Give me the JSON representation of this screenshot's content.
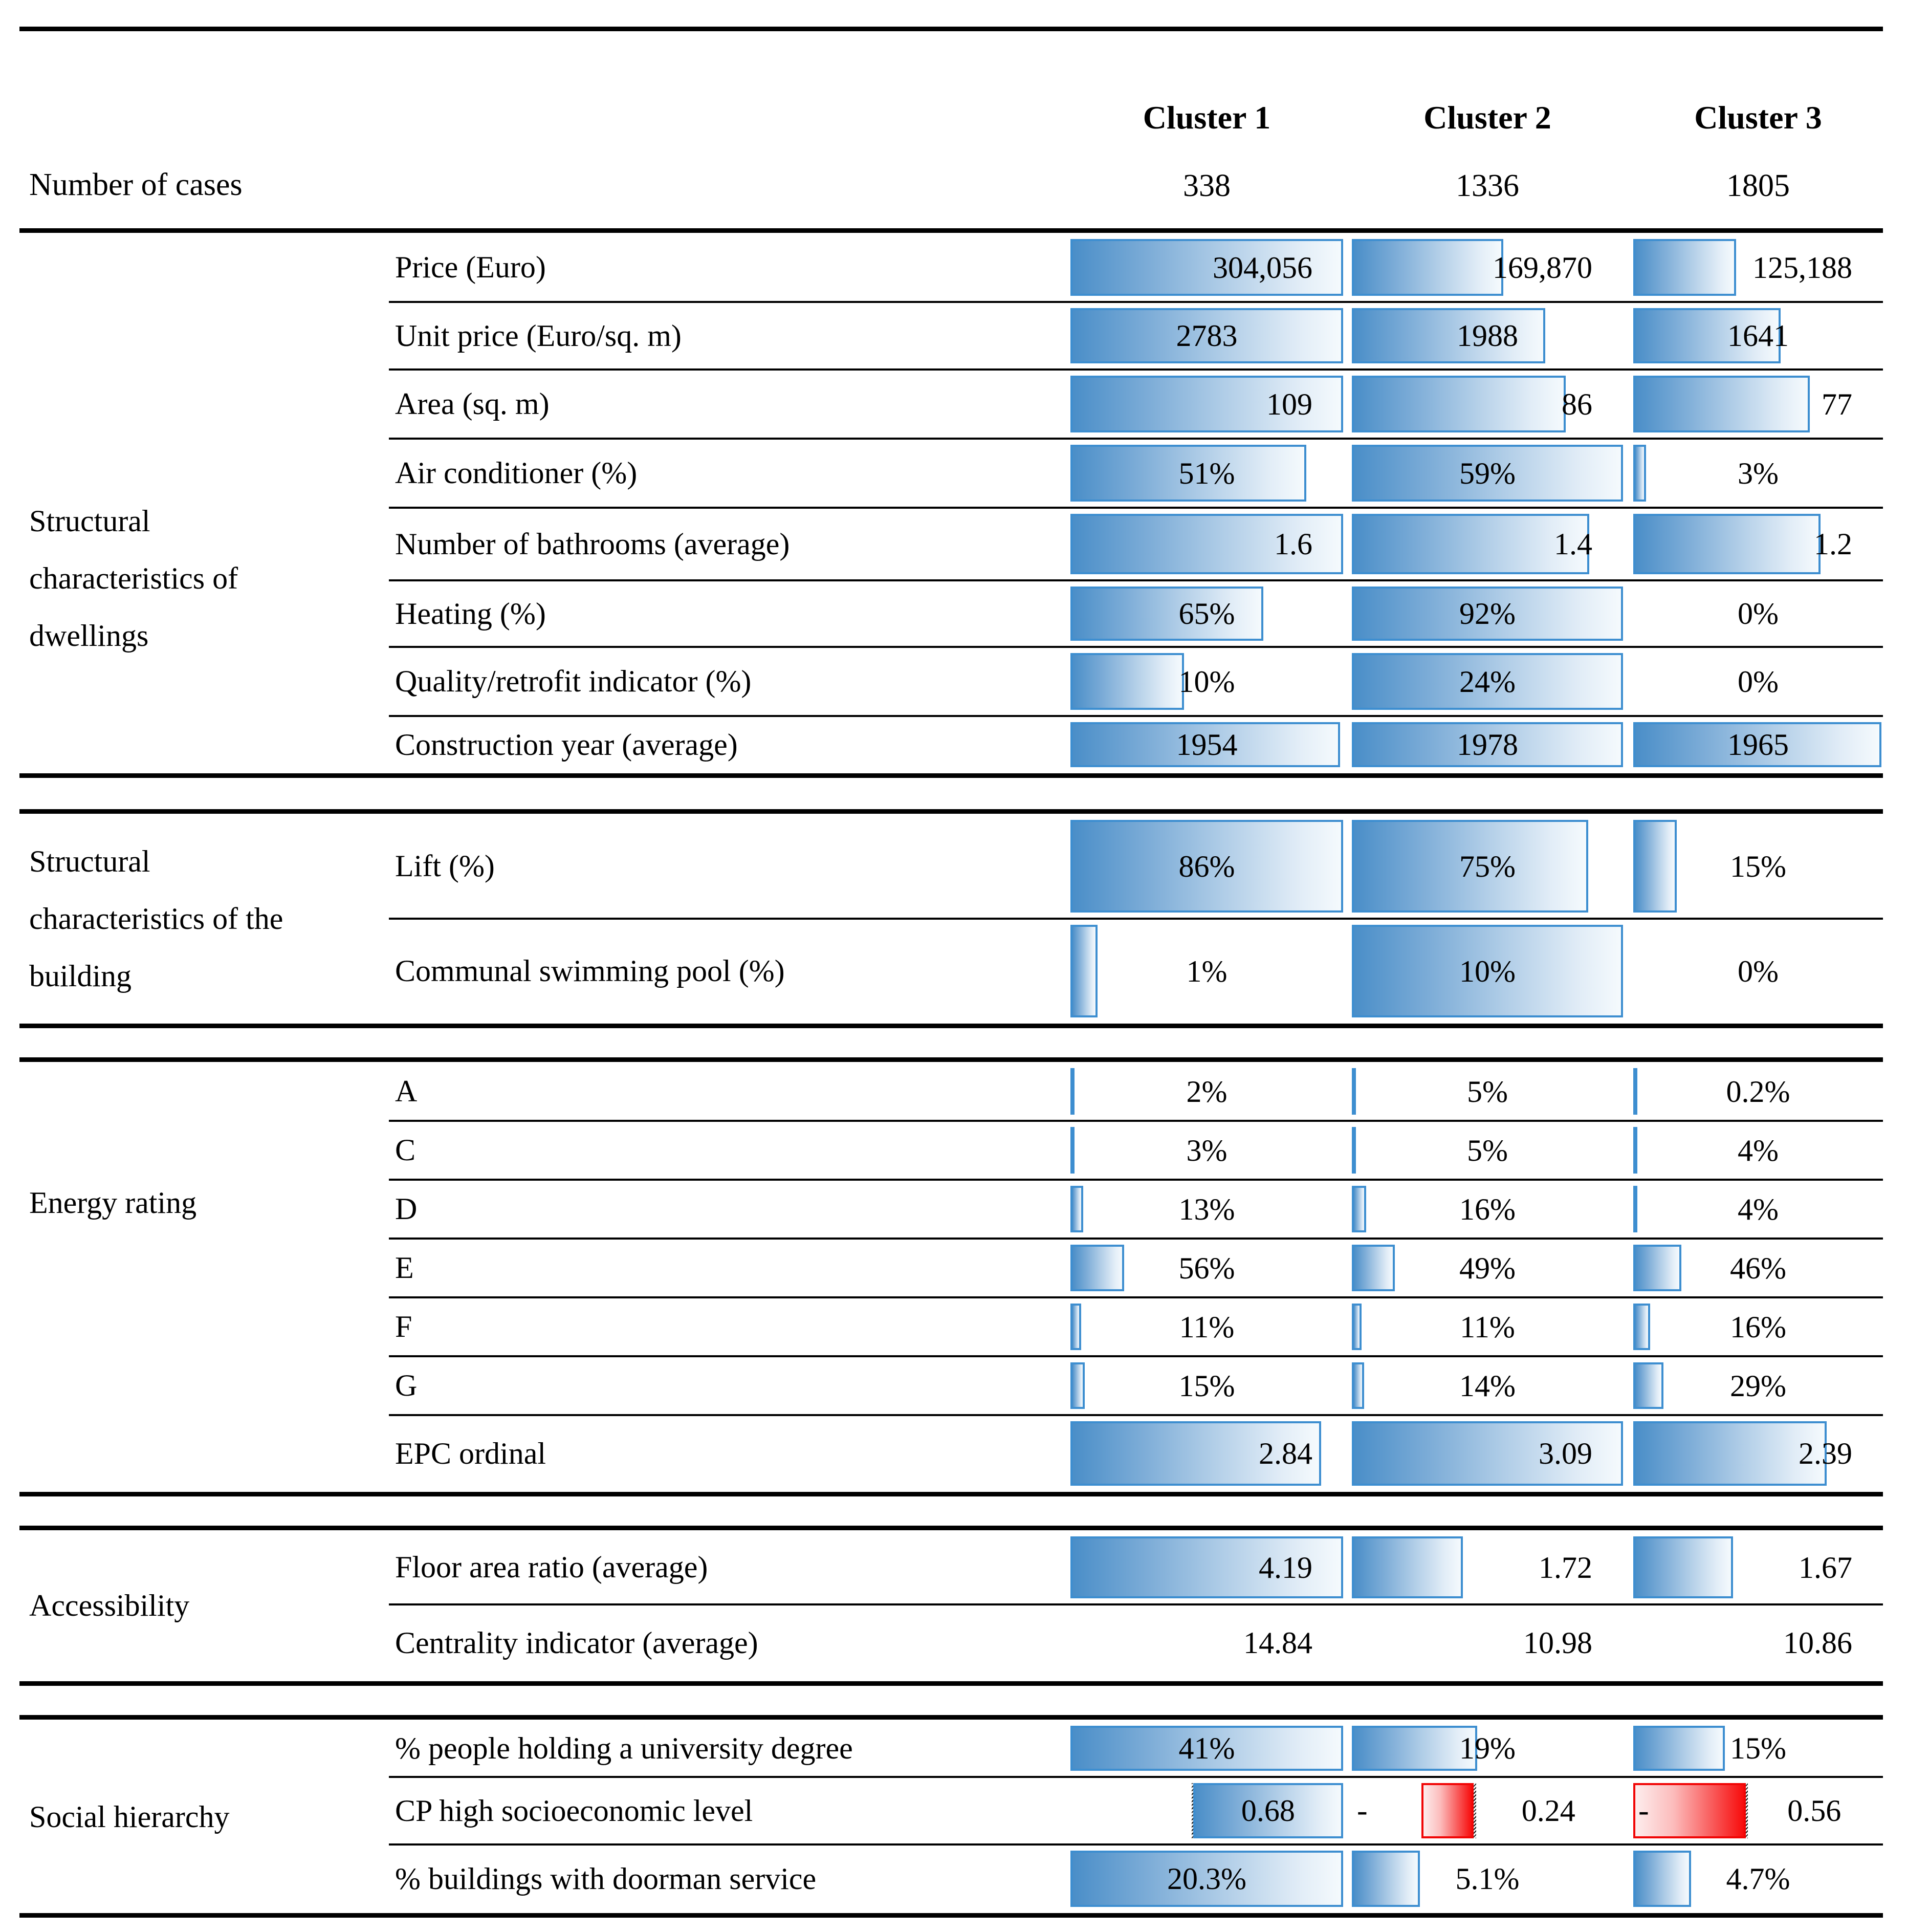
{
  "header": {
    "number_of_cases_label": "Number of cases",
    "clusters": [
      {
        "name": "Cluster 1",
        "count": "338"
      },
      {
        "name": "Cluster 2",
        "count": "1336"
      },
      {
        "name": "Cluster 3",
        "count": "1805"
      }
    ]
  },
  "colors": {
    "bar_blue_border": "#3d8ed0",
    "bar_blue_solid": "#4a8ec8",
    "bar_red_border": "#f10505",
    "bar_red_solid": "#f80c0c"
  },
  "sections": [
    {
      "label_lines": [
        "Structural",
        "characteristics of",
        "dwellings"
      ],
      "rows": [
        {
          "label": "Price (Euro)",
          "align": "right",
          "cells": [
            {
              "value": "304,056",
              "bar": 1
            },
            {
              "value": "169,870",
              "bar": 0.559
            },
            {
              "value": "125,188",
              "bar": 0.412
            }
          ]
        },
        {
          "label": "Unit price (Euro/sq. m)",
          "align": "center",
          "cells": [
            {
              "value": "2783",
              "bar": 1
            },
            {
              "value": "1988",
              "bar": 0.714
            },
            {
              "value": "1641",
              "bar": 0.59
            }
          ]
        },
        {
          "label": "Area (sq. m)",
          "align": "right",
          "cells": [
            {
              "value": "109",
              "bar": 1
            },
            {
              "value": "86",
              "bar": 0.789
            },
            {
              "value": "77",
              "bar": 0.706
            }
          ]
        },
        {
          "label": "Air conditioner (%)",
          "align": "center",
          "cells": [
            {
              "value": "51%",
              "bar": 0.864
            },
            {
              "value": "59%",
              "bar": 1
            },
            {
              "value": "3%",
              "bar": 0.051
            }
          ]
        },
        {
          "label": "Number of bathrooms (average)",
          "align": "right",
          "cells": [
            {
              "value": "1.6",
              "bar": 1
            },
            {
              "value": "1.4",
              "bar": 0.875
            },
            {
              "value": "1.2",
              "bar": 0.75
            }
          ]
        },
        {
          "label": "Heating (%)",
          "align": "center",
          "cells": [
            {
              "value": "65%",
              "bar": 0.707
            },
            {
              "value": "92%",
              "bar": 1
            },
            {
              "value": "0%",
              "bar": 0
            }
          ]
        },
        {
          "label": "Quality/retrofit indicator (%)",
          "align": "center",
          "cells": [
            {
              "value": "10%",
              "bar": 0.417
            },
            {
              "value": "24%",
              "bar": 1
            },
            {
              "value": "0%",
              "bar": 0
            }
          ]
        },
        {
          "label": "Construction year (average)",
          "align": "center",
          "cells": [
            {
              "value": "1954",
              "bar": 0.988
            },
            {
              "value": "1978",
              "bar": 1
            },
            {
              "value": "1965",
              "bar": 0.993
            }
          ]
        }
      ]
    },
    {
      "label_lines": [
        "Structural",
        "characteristics of the",
        "building"
      ],
      "rows": [
        {
          "label": "Lift (%)",
          "align": "center",
          "cells": [
            {
              "value": "86%",
              "bar": 1
            },
            {
              "value": "75%",
              "bar": 0.872
            },
            {
              "value": "15%",
              "bar": 0.174
            }
          ]
        },
        {
          "label": "Communal swimming pool (%)",
          "align": "center",
          "cells": [
            {
              "value": "1%",
              "bar": 0.1
            },
            {
              "value": "10%",
              "bar": 1
            },
            {
              "value": "0%",
              "bar": 0
            }
          ]
        }
      ]
    },
    {
      "label_lines": [
        "Energy rating"
      ],
      "rows": [
        {
          "label": "A",
          "align": "center",
          "cells": [
            {
              "value": "2%",
              "bar": 0.007
            },
            {
              "value": "5%",
              "bar": 0.016
            },
            {
              "value": "0.2%",
              "bar": 0.002
            }
          ]
        },
        {
          "label": "C",
          "align": "center",
          "cells": [
            {
              "value": "3%",
              "bar": 0.011
            },
            {
              "value": "5%",
              "bar": 0.016
            },
            {
              "value": "4%",
              "bar": 0.017
            }
          ]
        },
        {
          "label": "D",
          "align": "center",
          "cells": [
            {
              "value": "13%",
              "bar": 0.046
            },
            {
              "value": "16%",
              "bar": 0.052
            },
            {
              "value": "4%",
              "bar": 0.017
            }
          ]
        },
        {
          "label": "E",
          "align": "center",
          "cells": [
            {
              "value": "56%",
              "bar": 0.197
            },
            {
              "value": "49%",
              "bar": 0.159
            },
            {
              "value": "46%",
              "bar": 0.192
            }
          ]
        },
        {
          "label": "F",
          "align": "center",
          "cells": [
            {
              "value": "11%",
              "bar": 0.039
            },
            {
              "value": "11%",
              "bar": 0.036
            },
            {
              "value": "16%",
              "bar": 0.067
            }
          ]
        },
        {
          "label": "G",
          "align": "center",
          "cells": [
            {
              "value": "15%",
              "bar": 0.053
            },
            {
              "value": "14%",
              "bar": 0.045
            },
            {
              "value": "29%",
              "bar": 0.121
            }
          ]
        },
        {
          "label": "EPC ordinal",
          "align": "right",
          "cells": [
            {
              "value": "2.84",
              "bar": 0.919
            },
            {
              "value": "3.09",
              "bar": 1
            },
            {
              "value": "2.39",
              "bar": 0.774
            }
          ]
        }
      ]
    },
    {
      "label_lines": [
        "Accessibility"
      ],
      "rows": [
        {
          "label": "Floor area ratio (average)",
          "align": "right",
          "cells": [
            {
              "value": "4.19",
              "bar": 1
            },
            {
              "value": "1.72",
              "bar": 0.41
            },
            {
              "value": "1.67",
              "bar": 0.399
            }
          ]
        },
        {
          "label": "Centrality indicator (average)",
          "align": "right",
          "cells": [
            {
              "value": "14.84",
              "bar": null
            },
            {
              "value": "10.98",
              "bar": null
            },
            {
              "value": "10.86",
              "bar": null
            }
          ]
        }
      ]
    },
    {
      "label_lines": [
        "Social hierarchy"
      ],
      "rows": [
        {
          "label": "% people holding a university degree",
          "align": "center",
          "cells": [
            {
              "value": "41%",
              "bar": 1
            },
            {
              "value": "19%",
              "bar": 0.463
            },
            {
              "value": "15%",
              "bar": 0.366
            }
          ]
        },
        {
          "label": "CP high socioeconomic level",
          "align": "center",
          "type": "cp",
          "axis": 0.45,
          "cells": [
            {
              "value": "0.68",
              "bar": 0.55,
              "neg": false
            },
            {
              "value": "0.24",
              "bar": 0.194,
              "neg": true,
              "minus": "-"
            },
            {
              "value": "0.56",
              "bar": 0.45,
              "neg": true,
              "minus": "-"
            }
          ]
        },
        {
          "label": "% buildings with doorman service",
          "align": "center",
          "cells": [
            {
              "value": "20.3%",
              "bar": 1
            },
            {
              "value": "5.1%",
              "bar": 0.251
            },
            {
              "value": "4.7%",
              "bar": 0.232
            }
          ]
        }
      ]
    }
  ]
}
